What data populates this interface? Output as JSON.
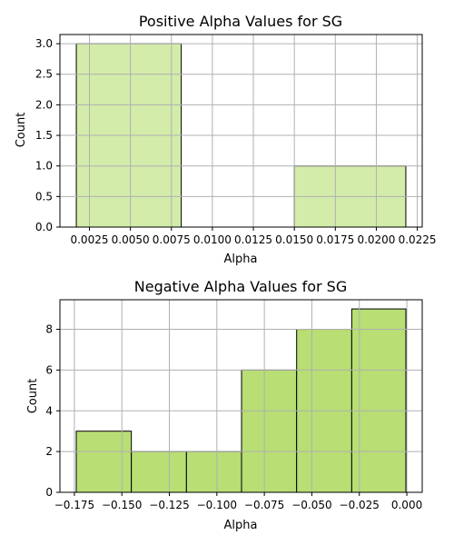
{
  "chart_data": [
    {
      "type": "bar",
      "title": "Positive Alpha Values for SG",
      "xlabel": "Alpha",
      "ylabel": "Count",
      "bins": [
        {
          "x0": 0.0017,
          "x1": 0.0081,
          "count": 3
        },
        {
          "x0": 0.0081,
          "x1": 0.015,
          "count": 0
        },
        {
          "x0": 0.015,
          "x1": 0.0218,
          "count": 1
        }
      ],
      "xlim": [
        0.0007,
        0.0228
      ],
      "ylim": [
        0,
        3.15
      ],
      "xticks": [
        0.0025,
        0.005,
        0.0075,
        0.01,
        0.0125,
        0.015,
        0.0175,
        0.02,
        0.0225
      ],
      "xtick_labels": [
        "0.0025",
        "0.0050",
        "0.0075",
        "0.0100",
        "0.0125",
        "0.0150",
        "0.0175",
        "0.0200",
        "0.0225"
      ],
      "yticks": [
        0.0,
        0.5,
        1.0,
        1.5,
        2.0,
        2.5,
        3.0
      ],
      "ytick_labels": [
        "0.0",
        "0.5",
        "1.0",
        "1.5",
        "2.0",
        "2.5",
        "3.0"
      ],
      "grid": true,
      "bar_color": "#d4ecaa",
      "bar_edge_color": "#000000"
    },
    {
      "type": "bar",
      "title": "Negative Alpha Values for SG",
      "xlabel": "Alpha",
      "ylabel": "Count",
      "bins": [
        {
          "x0": -0.174,
          "x1": -0.145,
          "count": 3
        },
        {
          "x0": -0.145,
          "x1": -0.116,
          "count": 2
        },
        {
          "x0": -0.116,
          "x1": -0.087,
          "count": 2
        },
        {
          "x0": -0.087,
          "x1": -0.058,
          "count": 6
        },
        {
          "x0": -0.058,
          "x1": -0.029,
          "count": 8
        },
        {
          "x0": -0.029,
          "x1": -0.0005,
          "count": 9
        }
      ],
      "xlim": [
        -0.1826,
        0.0081
      ],
      "ylim": [
        0,
        9.45
      ],
      "xticks": [
        -0.175,
        -0.15,
        -0.125,
        -0.1,
        -0.075,
        -0.05,
        -0.025,
        0.0
      ],
      "xtick_labels": [
        "−0.175",
        "−0.150",
        "−0.125",
        "−0.100",
        "−0.075",
        "−0.050",
        "−0.025",
        "0.000"
      ],
      "yticks": [
        0,
        2,
        4,
        6,
        8
      ],
      "ytick_labels": [
        "0",
        "2",
        "4",
        "6",
        "8"
      ],
      "grid": true,
      "bar_color": "#b8de74",
      "bar_edge_color": "#000000"
    }
  ]
}
